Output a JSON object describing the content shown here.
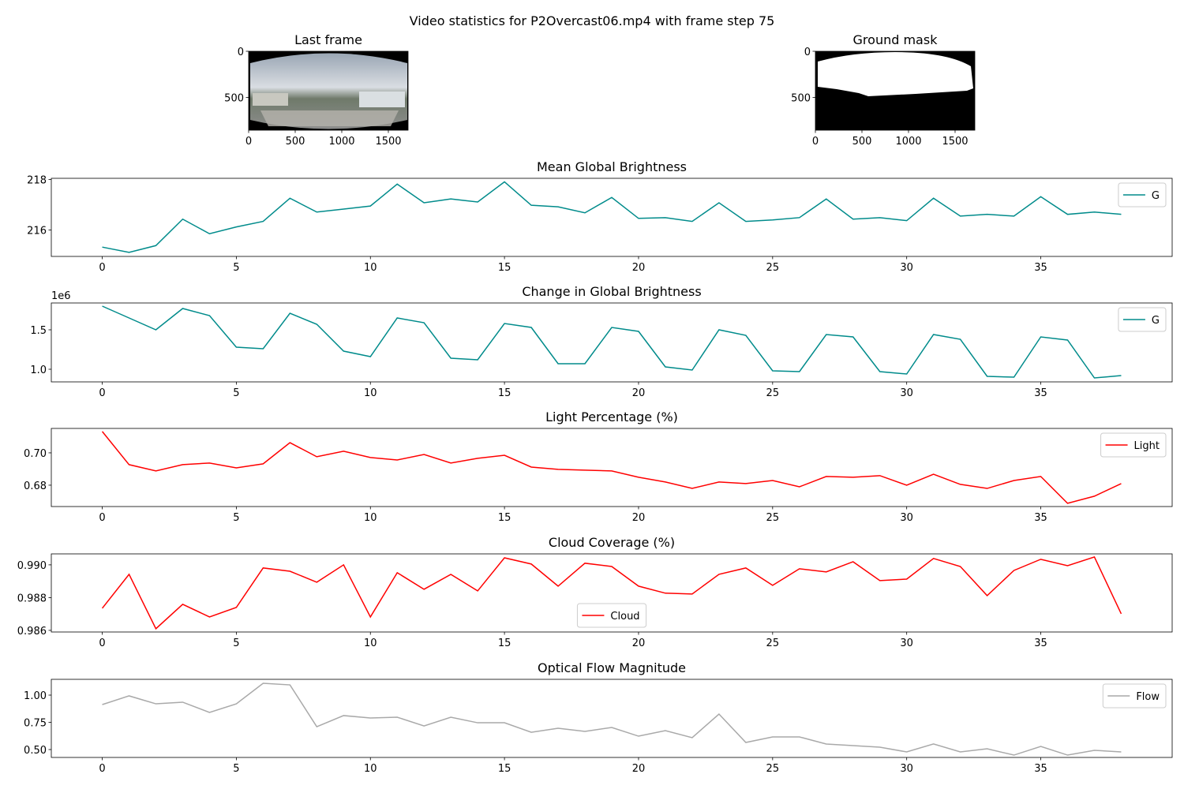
{
  "title": "Video statistics for P2Overcast06.mp4 with frame step 75",
  "chart_data": [
    {
      "type": "image",
      "title": "Last frame",
      "xlim": [
        0,
        1712
      ],
      "ylim": [
        855,
        0
      ],
      "xticks": [
        0,
        500,
        1000,
        1500
      ],
      "yticks": [
        0,
        500
      ]
    },
    {
      "type": "image",
      "title": "Ground mask",
      "xlim": [
        0,
        1712
      ],
      "ylim": [
        855,
        0
      ],
      "xticks": [
        0,
        500,
        1000,
        1500
      ],
      "yticks": [
        0,
        500
      ]
    },
    {
      "type": "line",
      "title": "Mean Global Brightness",
      "legend": "upper right",
      "x": [
        0,
        1,
        2,
        3,
        4,
        5,
        6,
        7,
        8,
        9,
        10,
        11,
        12,
        13,
        14,
        15,
        16,
        17,
        18,
        19,
        20,
        21,
        22,
        23,
        24,
        25,
        26,
        27,
        28,
        29,
        30,
        31,
        32,
        33,
        34,
        35,
        36,
        37,
        38
      ],
      "series": [
        {
          "name": "G",
          "color": "#008b8b",
          "values": [
            215.32,
            215.11,
            215.38,
            216.43,
            215.85,
            216.12,
            216.34,
            217.26,
            216.71,
            216.83,
            216.95,
            217.82,
            217.08,
            217.23,
            217.11,
            217.91,
            216.98,
            216.92,
            216.68,
            217.29,
            216.46,
            216.49,
            216.34,
            217.08,
            216.34,
            216.4,
            216.49,
            217.23,
            216.43,
            216.49,
            216.37,
            217.26,
            216.55,
            216.62,
            216.55,
            217.32,
            216.62,
            216.71,
            216.62
          ]
        }
      ],
      "xlim": [
        -1.9,
        39.9
      ],
      "ylim": [
        214.95,
        218.05
      ],
      "xticks": [
        0,
        5,
        10,
        15,
        20,
        25,
        30,
        35
      ],
      "yticks": [
        216,
        218
      ]
    },
    {
      "type": "line",
      "title": "Change in Global Brightness",
      "legend": "upper right",
      "y_offset_label": "1e6",
      "x": [
        0,
        1,
        2,
        3,
        4,
        5,
        6,
        7,
        8,
        9,
        10,
        11,
        12,
        13,
        14,
        15,
        16,
        17,
        18,
        19,
        20,
        21,
        22,
        23,
        24,
        25,
        26,
        27,
        28,
        29,
        30,
        31,
        32,
        33,
        34,
        35,
        36,
        37,
        38
      ],
      "series": [
        {
          "name": "G",
          "color": "#008b8b",
          "values": [
            1.8,
            1.65,
            1.5,
            1.77,
            1.68,
            1.28,
            1.26,
            1.71,
            1.57,
            1.23,
            1.16,
            1.65,
            1.59,
            1.14,
            1.12,
            1.58,
            1.53,
            1.07,
            1.07,
            1.53,
            1.48,
            1.03,
            0.99,
            1.5,
            1.43,
            0.98,
            0.97,
            1.44,
            1.41,
            0.97,
            0.94,
            1.44,
            1.38,
            0.91,
            0.9,
            1.41,
            1.37,
            0.89,
            0.92
          ]
        }
      ],
      "xlim": [
        -1.9,
        39.9
      ],
      "ylim": [
        0.84,
        1.84
      ],
      "xticks": [
        0,
        5,
        10,
        15,
        20,
        25,
        30,
        35
      ],
      "yticks": [
        {
          "value": 1.0,
          "label": "1.0"
        },
        {
          "value": 1.5,
          "label": "1.5"
        }
      ]
    },
    {
      "type": "line",
      "title": "Light Percentage (%)",
      "legend": "upper right",
      "x": [
        0,
        1,
        2,
        3,
        4,
        5,
        6,
        7,
        8,
        9,
        10,
        11,
        12,
        13,
        14,
        15,
        16,
        17,
        18,
        19,
        20,
        21,
        22,
        23,
        24,
        25,
        26,
        27,
        28,
        29,
        30,
        31,
        32,
        33,
        34,
        35,
        36,
        37,
        38
      ],
      "series": [
        {
          "name": "Light",
          "color": "#ff0000",
          "values": [
            0.7132,
            0.6927,
            0.6888,
            0.6927,
            0.6937,
            0.6907,
            0.6932,
            0.7063,
            0.6976,
            0.701,
            0.6971,
            0.6956,
            0.699,
            0.6937,
            0.6966,
            0.6985,
            0.6912,
            0.6898,
            0.6893,
            0.6888,
            0.6849,
            0.682,
            0.678,
            0.682,
            0.681,
            0.6829,
            0.679,
            0.6854,
            0.6849,
            0.6859,
            0.68,
            0.6868,
            0.6805,
            0.678,
            0.6829,
            0.6854,
            0.6688,
            0.6732,
            0.681
          ]
        }
      ],
      "xlim": [
        -1.9,
        39.9
      ],
      "ylim": [
        0.6668,
        0.7151
      ],
      "xticks": [
        0,
        5,
        10,
        15,
        20,
        25,
        30,
        35
      ],
      "yticks": [
        {
          "value": 0.68,
          "label": "0.68"
        },
        {
          "value": 0.7,
          "label": "0.70"
        }
      ]
    },
    {
      "type": "line",
      "title": "Cloud Coverage (%)",
      "legend": "lower center",
      "x": [
        0,
        1,
        2,
        3,
        4,
        5,
        6,
        7,
        8,
        9,
        10,
        11,
        12,
        13,
        14,
        15,
        16,
        17,
        18,
        19,
        20,
        21,
        22,
        23,
        24,
        25,
        26,
        27,
        28,
        29,
        30,
        31,
        32,
        33,
        34,
        35,
        36,
        37,
        38
      ],
      "series": [
        {
          "name": "Cloud",
          "color": "#ff0000",
          "values": [
            0.98735,
            0.98942,
            0.9861,
            0.98759,
            0.98682,
            0.9874,
            0.98981,
            0.98961,
            0.98894,
            0.99,
            0.98682,
            0.98952,
            0.98851,
            0.98942,
            0.98841,
            0.99043,
            0.99005,
            0.9887,
            0.9901,
            0.9899,
            0.9887,
            0.98827,
            0.98822,
            0.98942,
            0.98981,
            0.98875,
            0.98976,
            0.98957,
            0.99019,
            0.98904,
            0.98913,
            0.99039,
            0.9899,
            0.98812,
            0.98966,
            0.99034,
            0.98995,
            0.99048,
            0.98701
          ]
        }
      ],
      "xlim": [
        -1.9,
        39.9
      ],
      "ylim": [
        0.9859,
        0.99067
      ],
      "xticks": [
        0,
        5,
        10,
        15,
        20,
        25,
        30,
        35
      ],
      "yticks": [
        {
          "value": 0.986,
          "label": "0.986"
        },
        {
          "value": 0.988,
          "label": "0.988"
        },
        {
          "value": 0.99,
          "label": "0.990"
        }
      ]
    },
    {
      "type": "line",
      "title": "Optical Flow Magnitude",
      "legend": "upper right",
      "x": [
        0,
        1,
        2,
        3,
        4,
        5,
        6,
        7,
        8,
        9,
        10,
        11,
        12,
        13,
        14,
        15,
        16,
        17,
        18,
        19,
        20,
        21,
        22,
        23,
        24,
        25,
        26,
        27,
        28,
        29,
        30,
        31,
        32,
        33,
        34,
        35,
        36,
        37,
        38
      ],
      "series": [
        {
          "name": "Flow",
          "color": "#a9a9a9",
          "values": [
            0.913,
            0.993,
            0.92,
            0.935,
            0.841,
            0.92,
            1.109,
            1.094,
            0.71,
            0.812,
            0.79,
            0.797,
            0.717,
            0.797,
            0.746,
            0.746,
            0.659,
            0.696,
            0.667,
            0.703,
            0.623,
            0.674,
            0.609,
            0.826,
            0.565,
            0.616,
            0.616,
            0.551,
            0.536,
            0.522,
            0.478,
            0.551,
            0.478,
            0.507,
            0.449,
            0.529,
            0.449,
            0.493,
            0.478
          ]
        }
      ],
      "xlim": [
        -1.9,
        39.9
      ],
      "ylim": [
        0.4275,
        1.145
      ],
      "xticks": [
        0,
        5,
        10,
        15,
        20,
        25,
        30,
        35
      ],
      "yticks": [
        {
          "value": 0.5,
          "label": "0.50"
        },
        {
          "value": 0.75,
          "label": "0.75"
        },
        {
          "value": 1.0,
          "label": "1.00"
        }
      ]
    }
  ]
}
